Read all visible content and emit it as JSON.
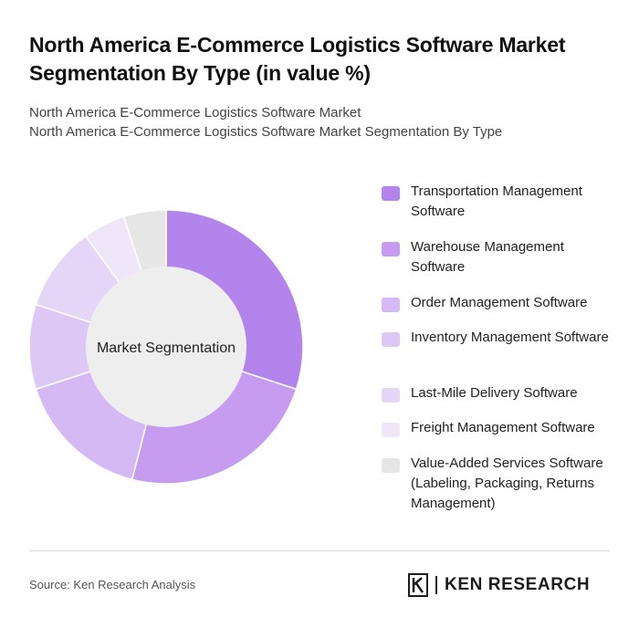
{
  "header": {
    "title": "North America E-Commerce Logistics Software Market Segmentation By Type (in value %)",
    "subtitle_line1": "North America E-Commerce Logistics Software Market",
    "subtitle_line2": "North America E-Commerce Logistics Software Market Segmentation By Type"
  },
  "chart_data": {
    "type": "pie",
    "style": "donut",
    "center_label": "Market Segmentation",
    "categories": [
      "Transportation Management Software",
      "Warehouse Management Software",
      "Order Management Software",
      "Inventory Management Software",
      "Last-Mile Delivery Software",
      "Freight Management Software",
      "Value-Added Services Software (Labeling, Packaging, Returns Management)"
    ],
    "values": [
      30,
      24,
      16,
      10,
      10,
      5,
      5
    ],
    "colors": [
      "#b384ec",
      "#c59cf0",
      "#d5b9f4",
      "#ddc8f5",
      "#e5d6f7",
      "#efe6fa",
      "#e6e6e6"
    ],
    "legend_position": "right"
  },
  "footer": {
    "source": "Source: Ken Research Analysis",
    "brand": "KEN RESEARCH"
  }
}
